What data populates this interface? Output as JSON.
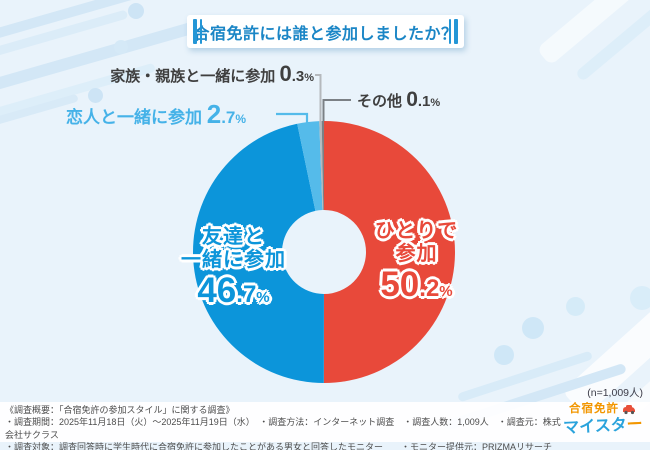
{
  "title": {
    "text": "合宿免許には誰と参加しましたか？",
    "color": "#1b86c6",
    "bar_color": "#2496d6"
  },
  "chart_data": {
    "type": "pie",
    "title": "合宿免許には誰と参加しましたか？",
    "donut": true,
    "hole_ratio": 0.32,
    "start_angle_deg": 0,
    "direction": "clockwise",
    "legend_position": "none",
    "sample_note": "(n=1,009人)",
    "slices": [
      {
        "label": "ひとりで参加",
        "label_lines": [
          "ひとりで",
          "参加"
        ],
        "value": 50.2,
        "color": "#e8493a"
      },
      {
        "label": "友達と一緒に参加",
        "label_lines": [
          "友達と",
          "一緒に参加"
        ],
        "value": 46.7,
        "color": "#0c95da"
      },
      {
        "label": "恋人と一緒に参加",
        "value": 2.7,
        "color": "#55bbea",
        "label_color": "#45b2e8"
      },
      {
        "label": "家族・親族と一緒に参加",
        "value": 0.3,
        "color": "#b5b9bd",
        "label_color": "#3f3f3f"
      },
      {
        "label": "その他",
        "value": 0.1,
        "color": "#7b8085",
        "label_color": "#3f3f3f"
      }
    ]
  },
  "survey_footer": {
    "line1": "《調査概要：「合宿免許の参加スタイル」に関する調査》",
    "line2": "・調査期間：2025年11月18日（火）～2025年11月19日（水）　・調査方法：インターネット調査　・調査人数：1,009人　・調査元：株式会社サクラス",
    "line3": "・調査対象：調査回答時に学生時代に合宿免許に参加したことがある男女と回答したモニター　　・モニター提供元：PRIZMAリサーチ"
  },
  "logo": {
    "name_top": "合宿免許",
    "name_bottom_main": "マイスタ",
    "name_bottom_tail": "ー",
    "orange": "#f29600",
    "blue": "#2aa3dc",
    "car_red": "#e8503a"
  }
}
